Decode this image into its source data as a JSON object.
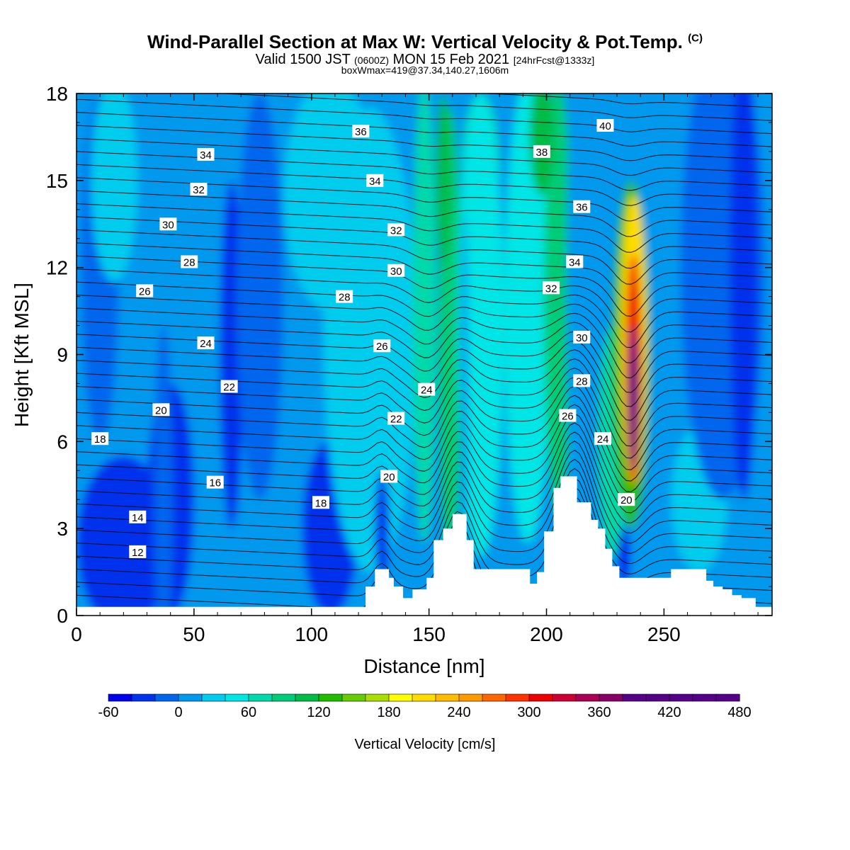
{
  "header": {
    "title": "Wind-Parallel Section at Max W: Vertical Velocity & Pot.Temp.",
    "copyright": "(C)",
    "valid_prefix": "Valid 1500 JST",
    "valid_utc": "(0600Z)",
    "valid_date": "MON 15 Feb 2021",
    "forecast": "[24hrFcst@1333z]",
    "boxwmax": "boxWmax=419@37.34,140.27,1606m"
  },
  "chart_data": {
    "type": "contour",
    "xlabel": "Distance [nm]",
    "ylabel": "Height [Kft MSL]",
    "xlim": [
      0,
      296
    ],
    "ylim": [
      0,
      18
    ],
    "x_ticks": [
      0,
      50,
      100,
      150,
      200,
      250
    ],
    "y_ticks": [
      0,
      3,
      6,
      9,
      12,
      15,
      18
    ],
    "colorbar": {
      "label": "Vertical Velocity [cm/s]",
      "min": -60,
      "max": 480,
      "step": 20,
      "tick_labels": [
        -60,
        0,
        60,
        120,
        180,
        240,
        300,
        360,
        420,
        480
      ],
      "colors": [
        "#0000ee",
        "#0033ee",
        "#0066ee",
        "#0099ee",
        "#00ccee",
        "#00e5e5",
        "#00d9aa",
        "#00cc77",
        "#00bb44",
        "#22bb00",
        "#66cc00",
        "#aadd00",
        "#ffff00",
        "#ffdd00",
        "#ffbb00",
        "#ff9900",
        "#ff6600",
        "#ff3300",
        "#ee0000",
        "#cc0033",
        "#aa0055",
        "#880066",
        "#550088"
      ]
    },
    "isentrope_labels": [
      {
        "text": "12",
        "x": 26,
        "y": 2.2
      },
      {
        "text": "14",
        "x": 26,
        "y": 3.4
      },
      {
        "text": "16",
        "x": 59,
        "y": 4.6
      },
      {
        "text": "18",
        "x": 10,
        "y": 6.1
      },
      {
        "text": "18",
        "x": 104,
        "y": 3.9
      },
      {
        "text": "20",
        "x": 36,
        "y": 7.1
      },
      {
        "text": "20",
        "x": 133,
        "y": 4.8
      },
      {
        "text": "20",
        "x": 234,
        "y": 4.0
      },
      {
        "text": "22",
        "x": 65,
        "y": 7.9
      },
      {
        "text": "22",
        "x": 136,
        "y": 6.8
      },
      {
        "text": "24",
        "x": 55,
        "y": 9.4
      },
      {
        "text": "24",
        "x": 149,
        "y": 7.8
      },
      {
        "text": "24",
        "x": 224,
        "y": 6.1
      },
      {
        "text": "26",
        "x": 29,
        "y": 11.2
      },
      {
        "text": "26",
        "x": 130,
        "y": 9.3
      },
      {
        "text": "26",
        "x": 209,
        "y": 6.9
      },
      {
        "text": "28",
        "x": 48,
        "y": 12.2
      },
      {
        "text": "28",
        "x": 114,
        "y": 11.0
      },
      {
        "text": "28",
        "x": 215,
        "y": 8.1
      },
      {
        "text": "30",
        "x": 39,
        "y": 13.5
      },
      {
        "text": "30",
        "x": 136,
        "y": 11.9
      },
      {
        "text": "30",
        "x": 215,
        "y": 9.6
      },
      {
        "text": "32",
        "x": 52,
        "y": 14.7
      },
      {
        "text": "32",
        "x": 136,
        "y": 13.3
      },
      {
        "text": "32",
        "x": 202,
        "y": 11.3
      },
      {
        "text": "34",
        "x": 55,
        "y": 15.9
      },
      {
        "text": "34",
        "x": 127,
        "y": 15.0
      },
      {
        "text": "34",
        "x": 212,
        "y": 12.2
      },
      {
        "text": "36",
        "x": 121,
        "y": 16.7
      },
      {
        "text": "36",
        "x": 215,
        "y": 14.1
      },
      {
        "text": "38",
        "x": 198,
        "y": 16.0
      },
      {
        "text": "40",
        "x": 225,
        "y": 16.9
      }
    ],
    "terrain_profile": {
      "x": [
        0,
        123,
        123,
        127,
        127,
        133,
        133,
        135,
        135,
        139,
        139,
        143,
        143,
        149,
        149,
        152,
        152,
        156,
        156,
        160,
        160,
        166,
        166,
        169,
        169,
        173,
        173,
        193,
        193,
        196,
        196,
        199,
        199,
        203,
        203,
        206,
        206,
        210,
        210,
        213,
        213,
        219,
        219,
        222,
        222,
        225,
        225,
        228,
        228,
        231,
        231,
        235,
        235,
        253,
        253,
        268,
        268,
        271,
        271,
        275,
        275,
        279,
        279,
        283,
        283,
        289,
        289,
        296
      ],
      "y": [
        0.3,
        0.3,
        1.0,
        1.0,
        1.6,
        1.6,
        1.3,
        1.3,
        1.0,
        1.0,
        0.6,
        0.6,
        0.9,
        0.9,
        1.3,
        1.3,
        2.6,
        2.6,
        3.0,
        3.0,
        3.5,
        3.5,
        2.6,
        2.6,
        1.6,
        1.6,
        1.6,
        1.6,
        1.1,
        1.1,
        1.5,
        1.5,
        2.9,
        2.9,
        4.4,
        4.4,
        4.8,
        4.8,
        4.8,
        4.8,
        3.9,
        3.9,
        3.3,
        3.3,
        3.0,
        3.0,
        2.3,
        2.3,
        1.7,
        1.7,
        1.3,
        1.3,
        1.3,
        1.3,
        1.6,
        1.6,
        1.2,
        1.2,
        1.0,
        1.0,
        0.9,
        0.9,
        0.7,
        0.7,
        0.6,
        0.6,
        0.3,
        0.3
      ]
    }
  }
}
